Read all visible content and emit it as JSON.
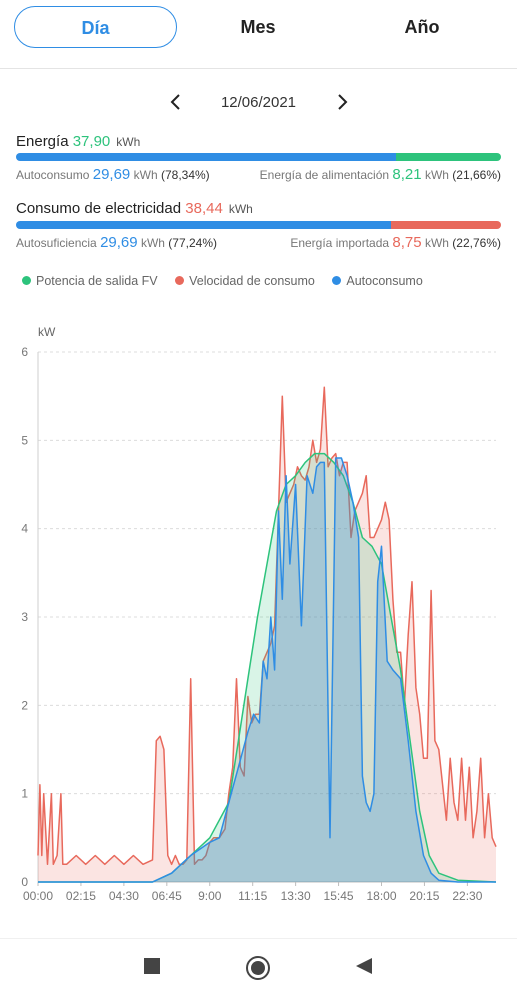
{
  "tabs": [
    {
      "label": "Día",
      "active": true
    },
    {
      "label": "Mes",
      "active": false
    },
    {
      "label": "Año",
      "active": false
    }
  ],
  "date": "12/06/2021",
  "colors": {
    "blue": "#2f8de4",
    "green": "#2dc37c",
    "red": "#e8695c"
  },
  "energy": {
    "title": "Energía",
    "value": "37,90",
    "unit": "kWh",
    "self_label": "Autoconsumo",
    "self_value": "29,69",
    "self_pct": "(78,34%)",
    "feed_label": "Energía de alimentación",
    "feed_value": "8,21",
    "feed_pct": "(21,66%)",
    "self_fraction": 0.7834
  },
  "consumption": {
    "title": "Consumo de electricidad",
    "value": "38,44",
    "unit": "kWh",
    "suff_label": "Autosuficiencia",
    "suff_value": "29,69",
    "suff_pct": "(77,24%)",
    "import_label": "Energía importada",
    "import_value": "8,75",
    "import_pct": "(22,76%)",
    "self_fraction": 0.7724
  },
  "chart_data": {
    "type": "area",
    "ylabel": "kW",
    "ylim": [
      0,
      6
    ],
    "yticks": [
      0,
      1,
      2,
      3,
      4,
      5,
      6
    ],
    "xtick_labels": [
      "00:00",
      "02:15",
      "04:30",
      "06:45",
      "9:00",
      "11:15",
      "13:30",
      "15:45",
      "18:00",
      "20:15",
      "22:30"
    ],
    "xtick_hours": [
      0,
      2.25,
      4.5,
      6.75,
      9,
      11.25,
      13.5,
      15.75,
      18,
      20.25,
      22.5
    ],
    "xlim_hours": [
      0,
      24
    ],
    "legend": [
      "Potencia de salida FV",
      "Velocidad de consumo",
      "Autoconsumo"
    ],
    "grid": true,
    "series": [
      {
        "name": "Potencia de salida FV",
        "color": "#2dc37c",
        "x_hours": [
          0,
          6,
          7,
          8,
          9,
          10,
          10.5,
          11,
          11.5,
          12,
          12.5,
          13,
          13.5,
          14,
          14.5,
          15,
          15.5,
          16,
          16.5,
          17,
          17.5,
          18,
          18.5,
          19,
          19.5,
          20,
          20.5,
          21,
          22,
          24
        ],
        "values": [
          0,
          0,
          0.1,
          0.3,
          0.5,
          0.9,
          1.6,
          2.3,
          3.0,
          3.6,
          4.2,
          4.5,
          4.6,
          4.75,
          4.85,
          4.85,
          4.75,
          4.6,
          4.3,
          3.9,
          3.8,
          3.6,
          3.0,
          2.4,
          1.6,
          0.8,
          0.3,
          0.1,
          0.02,
          0
        ]
      },
      {
        "name": "Velocidad de consumo",
        "color": "#e8695c",
        "x_hours": [
          0,
          0.1,
          0.2,
          0.3,
          0.5,
          0.7,
          0.8,
          1.0,
          1.2,
          1.3,
          1.5,
          2.0,
          2.5,
          3.0,
          3.5,
          4.0,
          4.5,
          5.0,
          5.5,
          6.0,
          6.2,
          6.4,
          6.6,
          6.8,
          7.0,
          7.2,
          7.4,
          7.6,
          7.8,
          8.0,
          8.2,
          8.4,
          8.6,
          8.8,
          9.0,
          9.2,
          9.5,
          9.8,
          10.0,
          10.2,
          10.4,
          10.6,
          10.8,
          11.0,
          11.2,
          11.4,
          11.6,
          11.8,
          12.0,
          12.2,
          12.4,
          12.6,
          12.8,
          13.0,
          13.2,
          13.4,
          13.6,
          13.8,
          14.0,
          14.2,
          14.4,
          14.6,
          14.8,
          15.0,
          15.2,
          15.4,
          15.6,
          15.8,
          16.0,
          16.2,
          16.4,
          16.6,
          16.8,
          17.0,
          17.2,
          17.4,
          17.6,
          17.8,
          18.0,
          18.2,
          18.4,
          18.6,
          18.8,
          19.0,
          19.2,
          19.4,
          19.6,
          19.8,
          20.0,
          20.2,
          20.4,
          20.6,
          20.8,
          21.0,
          21.2,
          21.4,
          21.6,
          21.8,
          22.0,
          22.2,
          22.4,
          22.6,
          22.8,
          23.0,
          23.2,
          23.4,
          23.6,
          23.8,
          24.0
        ],
        "values": [
          0.3,
          1.1,
          0.3,
          1.0,
          0.2,
          1.0,
          0.2,
          0.3,
          1.0,
          0.2,
          0.2,
          0.3,
          0.2,
          0.3,
          0.2,
          0.3,
          0.2,
          0.3,
          0.2,
          0.25,
          1.6,
          1.65,
          1.5,
          0.3,
          0.2,
          0.3,
          0.2,
          0.2,
          0.25,
          2.3,
          0.2,
          0.25,
          0.25,
          0.3,
          0.45,
          0.5,
          0.5,
          0.6,
          1.0,
          1.3,
          2.3,
          1.3,
          1.2,
          2.1,
          1.8,
          1.9,
          1.9,
          2.5,
          2.6,
          2.7,
          2.9,
          4.2,
          5.5,
          4.3,
          4.4,
          4.5,
          4.7,
          4.6,
          4.55,
          4.7,
          5.0,
          4.75,
          4.9,
          5.6,
          4.7,
          4.8,
          4.85,
          4.6,
          4.75,
          4.75,
          3.9,
          4.2,
          4.3,
          4.4,
          4.6,
          3.9,
          3.9,
          4.0,
          4.1,
          4.3,
          4.1,
          3.2,
          2.6,
          2.6,
          2.0,
          2.8,
          3.4,
          2.2,
          1.9,
          1.4,
          1.4,
          3.3,
          1.6,
          1.5,
          1.1,
          0.7,
          1.4,
          0.9,
          0.7,
          1.4,
          0.7,
          1.3,
          0.5,
          0.8,
          1.4,
          0.5,
          1.0,
          0.5,
          0.4
        ]
      },
      {
        "name": "Autoconsumo",
        "color": "#2f8de4",
        "x_hours": [
          0,
          6,
          7,
          8,
          9,
          9.5,
          10,
          10.5,
          11,
          11.3,
          11.6,
          11.8,
          12.0,
          12.2,
          12.4,
          12.6,
          12.8,
          13.0,
          13.2,
          13.5,
          13.8,
          14.1,
          14.4,
          14.6,
          14.8,
          15.0,
          15.3,
          15.6,
          15.9,
          16.2,
          16.5,
          16.8,
          17.0,
          17.2,
          17.4,
          17.6,
          17.8,
          18.0,
          18.3,
          18.6,
          19.0,
          19.4,
          19.8,
          20.2,
          20.6,
          21.0,
          22.0,
          24
        ],
        "values": [
          0,
          0,
          0.1,
          0.3,
          0.45,
          0.5,
          0.9,
          1.3,
          1.7,
          1.9,
          1.8,
          2.5,
          2.3,
          3.0,
          2.4,
          4.2,
          3.2,
          4.6,
          3.6,
          4.5,
          2.9,
          4.6,
          4.4,
          4.7,
          4.75,
          4.75,
          0.5,
          4.8,
          4.8,
          4.6,
          4.3,
          3.9,
          1.2,
          0.9,
          0.8,
          1.0,
          3.4,
          3.8,
          2.5,
          2.4,
          2.3,
          1.6,
          0.8,
          0.3,
          0.1,
          0.02,
          0,
          0
        ]
      }
    ]
  },
  "navbar": {
    "back": "back",
    "home": "home",
    "recent": "recent-apps"
  }
}
